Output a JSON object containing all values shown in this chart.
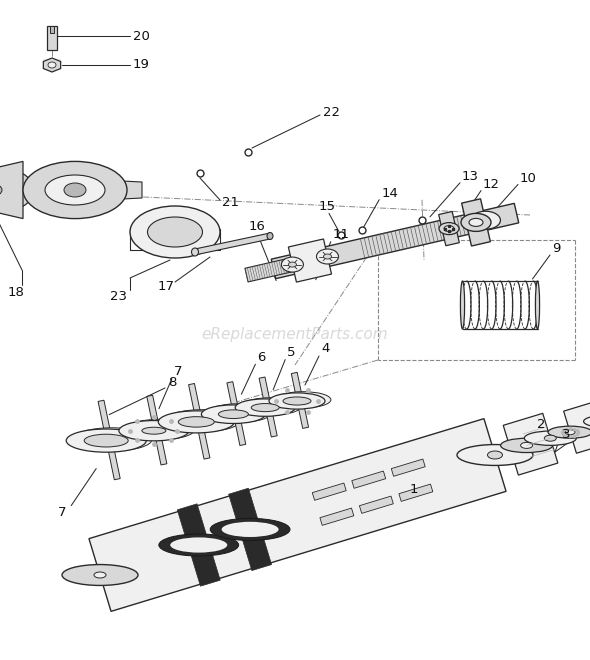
{
  "background_color": "#ffffff",
  "watermark": "eReplacementParts.com",
  "watermark_color": "#c0c0c0",
  "watermark_fontsize": 11,
  "line_color": "#2a2a2a",
  "fill_light": "#f0f0f0",
  "fill_mid": "#d8d8d8",
  "fill_dark": "#b8b8b8",
  "fill_very_dark": "#888888",
  "dash_color": "#888888",
  "label_fontsize": 9.5
}
